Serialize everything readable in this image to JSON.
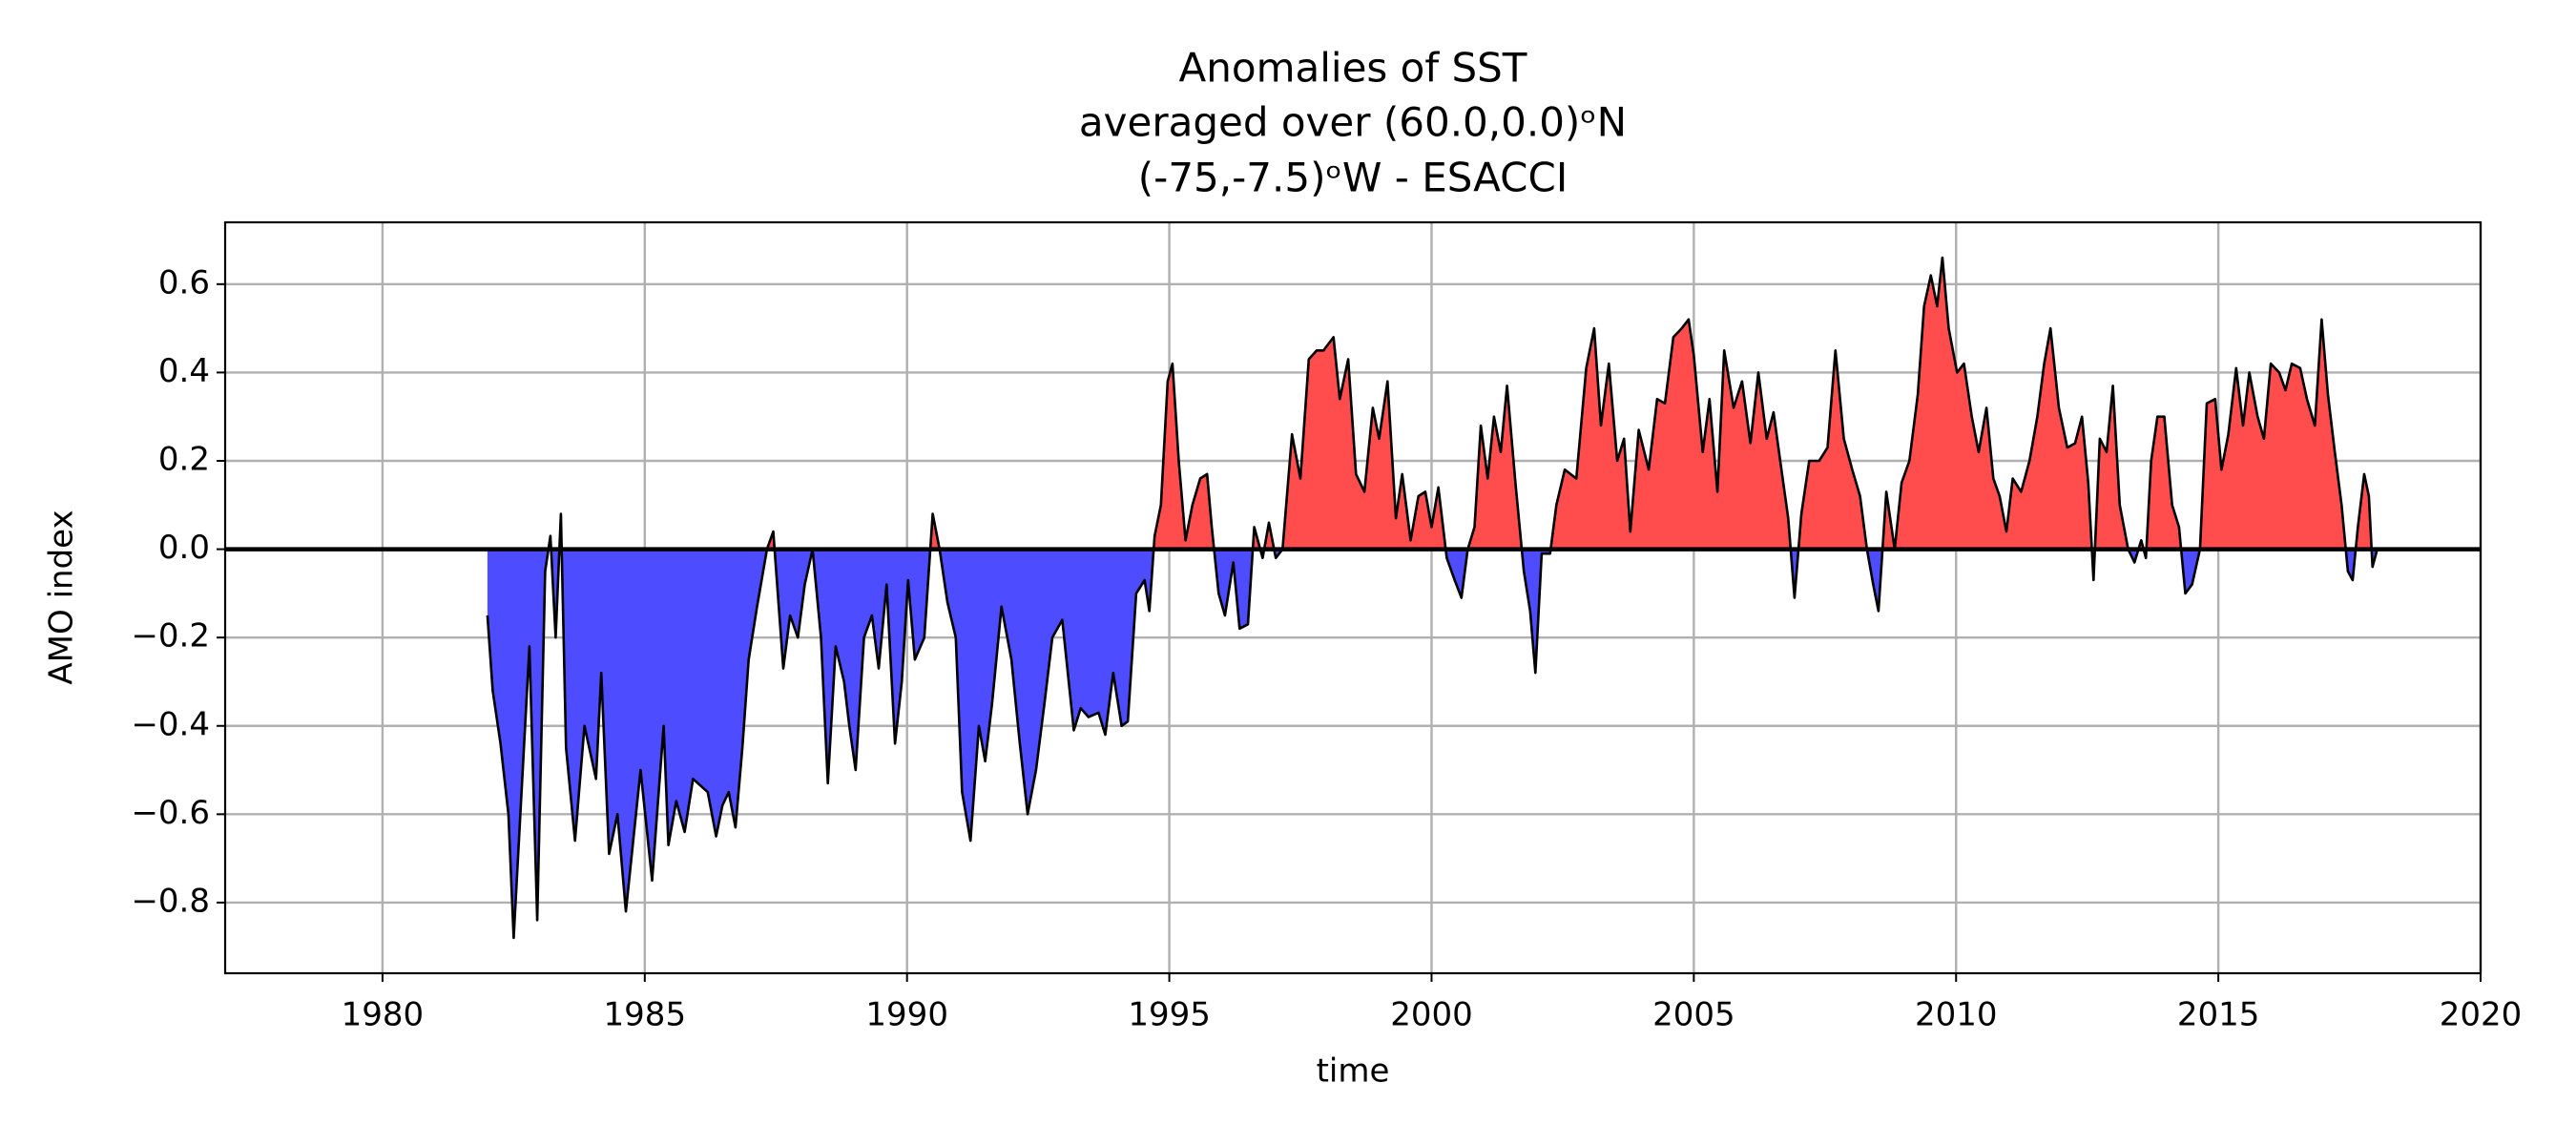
{
  "chart_data": {
    "type": "area",
    "title": [
      "Anomalies of SST",
      "averaged over (60.0,0.0)ᵒN",
      "(-75,-7.5)ᵒW - ESACCI"
    ],
    "xlabel": "time",
    "ylabel": "AMO index",
    "x": [
      1982.0,
      1982.1,
      1982.25,
      1982.4,
      1982.5,
      1982.8,
      1982.95,
      1983.1,
      1983.2,
      1983.3,
      1983.4,
      1983.5,
      1983.67,
      1983.85,
      1984.07,
      1984.17,
      1984.32,
      1984.48,
      1984.64,
      1984.92,
      1985.14,
      1985.36,
      1985.45,
      1985.6,
      1985.76,
      1985.92,
      1986.2,
      1986.36,
      1986.48,
      1986.6,
      1986.73,
      1986.86,
      1986.98,
      1987.14,
      1987.33,
      1987.45,
      1987.64,
      1987.77,
      1987.92,
      1988.05,
      1988.2,
      1988.36,
      1988.49,
      1988.64,
      1988.8,
      1988.9,
      1989.02,
      1989.18,
      1989.33,
      1989.46,
      1989.61,
      1989.77,
      1989.9,
      1990.02,
      1990.15,
      1990.33,
      1990.49,
      1990.62,
      1990.77,
      1990.93,
      1991.05,
      1991.21,
      1991.37,
      1991.49,
      1991.62,
      1991.8,
      1991.99,
      1992.15,
      1992.3,
      1992.46,
      1992.62,
      1992.77,
      1992.96,
      1993.18,
      1993.31,
      1993.46,
      1993.65,
      1993.78,
      1993.93,
      1994.09,
      1994.21,
      1994.37,
      1994.53,
      1994.62,
      1994.72,
      1994.84,
      1994.97,
      1995.06,
      1995.18,
      1995.31,
      1995.44,
      1995.59,
      1995.72,
      1995.81,
      1995.94,
      1996.06,
      1996.22,
      1996.34,
      1996.5,
      1996.62,
      1996.78,
      1996.9,
      1997.03,
      1997.16,
      1997.34,
      1997.5,
      1997.66,
      1997.81,
      1997.94,
      1998.13,
      1998.25,
      1998.41,
      1998.56,
      1998.72,
      1998.88,
      1999.0,
      1999.16,
      1999.32,
      1999.44,
      1999.6,
      1999.75,
      1999.88,
      2000.0,
      2000.13,
      2000.29,
      2000.44,
      2000.57,
      2000.69,
      2000.82,
      2000.94,
      2001.07,
      2001.19,
      2001.32,
      2001.44,
      2001.6,
      2001.76,
      2001.88,
      2001.98,
      2002.1,
      2002.26,
      2002.38,
      2002.54,
      2002.76,
      2002.95,
      2003.1,
      2003.23,
      2003.38,
      2003.54,
      2003.67,
      2003.79,
      2003.95,
      2004.14,
      2004.3,
      2004.45,
      2004.61,
      2004.77,
      2004.9,
      2005.0,
      2005.17,
      2005.3,
      2005.45,
      2005.58,
      2005.76,
      2005.92,
      2006.08,
      2006.23,
      2006.39,
      2006.52,
      2006.67,
      2006.8,
      2006.92,
      2007.05,
      2007.2,
      2007.39,
      2007.55,
      2007.7,
      2007.86,
      2008.02,
      2008.17,
      2008.3,
      2008.42,
      2008.52,
      2008.67,
      2008.83,
      2008.96,
      2009.11,
      2009.27,
      2009.39,
      2009.52,
      2009.64,
      2009.74,
      2009.86,
      2010.02,
      2010.15,
      2010.3,
      2010.43,
      2010.58,
      2010.71,
      2010.83,
      2010.96,
      2011.08,
      2011.24,
      2011.4,
      2011.55,
      2011.68,
      2011.8,
      2011.96,
      2012.12,
      2012.27,
      2012.4,
      2012.52,
      2012.62,
      2012.74,
      2012.87,
      2012.99,
      2013.12,
      2013.28,
      2013.4,
      2013.53,
      2013.62,
      2013.72,
      2013.84,
      2013.97,
      2014.12,
      2014.25,
      2014.37,
      2014.5,
      2014.65,
      2014.78,
      2014.94,
      2015.06,
      2015.19,
      2015.34,
      2015.47,
      2015.59,
      2015.75,
      2015.87,
      2016.0,
      2016.16,
      2016.28,
      2016.4,
      2016.56,
      2016.69,
      2016.84,
      2016.97,
      2017.09,
      2017.22,
      2017.35,
      2017.47,
      2017.56,
      2017.66,
      2017.78,
      2017.87,
      2017.94,
      2018.03
    ],
    "values": [
      -0.15,
      -0.32,
      -0.44,
      -0.6,
      -0.88,
      -0.22,
      -0.84,
      -0.05,
      0.03,
      -0.2,
      0.08,
      -0.45,
      -0.66,
      -0.4,
      -0.52,
      -0.28,
      -0.69,
      -0.6,
      -0.82,
      -0.5,
      -0.75,
      -0.4,
      -0.67,
      -0.57,
      -0.64,
      -0.52,
      -0.55,
      -0.65,
      -0.58,
      -0.55,
      -0.63,
      -0.45,
      -0.25,
      -0.13,
      0.0,
      0.04,
      -0.27,
      -0.15,
      -0.2,
      -0.08,
      0.0,
      -0.2,
      -0.53,
      -0.22,
      -0.3,
      -0.4,
      -0.5,
      -0.2,
      -0.15,
      -0.27,
      -0.08,
      -0.44,
      -0.3,
      -0.07,
      -0.25,
      -0.2,
      0.08,
      0.0,
      -0.12,
      -0.2,
      -0.55,
      -0.66,
      -0.4,
      -0.48,
      -0.35,
      -0.13,
      -0.25,
      -0.44,
      -0.6,
      -0.5,
      -0.35,
      -0.2,
      -0.16,
      -0.41,
      -0.36,
      -0.38,
      -0.37,
      -0.42,
      -0.28,
      -0.4,
      -0.39,
      -0.1,
      -0.07,
      -0.14,
      0.03,
      0.1,
      0.38,
      0.42,
      0.2,
      0.02,
      0.1,
      0.16,
      0.17,
      0.05,
      -0.1,
      -0.15,
      -0.03,
      -0.18,
      -0.17,
      0.05,
      -0.02,
      0.06,
      -0.02,
      0.0,
      0.26,
      0.16,
      0.43,
      0.45,
      0.45,
      0.48,
      0.34,
      0.43,
      0.17,
      0.13,
      0.32,
      0.25,
      0.38,
      0.07,
      0.17,
      0.02,
      0.12,
      0.13,
      0.05,
      0.14,
      -0.02,
      -0.07,
      -0.11,
      0.0,
      0.05,
      0.28,
      0.16,
      0.3,
      0.22,
      0.37,
      0.15,
      -0.05,
      -0.14,
      -0.28,
      -0.01,
      -0.01,
      0.1,
      0.18,
      0.16,
      0.41,
      0.5,
      0.28,
      0.42,
      0.2,
      0.25,
      0.04,
      0.27,
      0.18,
      0.34,
      0.33,
      0.48,
      0.5,
      0.52,
      0.44,
      0.22,
      0.34,
      0.13,
      0.45,
      0.32,
      0.38,
      0.24,
      0.4,
      0.25,
      0.31,
      0.18,
      0.07,
      -0.11,
      0.08,
      0.2,
      0.2,
      0.23,
      0.45,
      0.25,
      0.18,
      0.12,
      0.0,
      -0.08,
      -0.14,
      0.13,
      0.0,
      0.15,
      0.2,
      0.35,
      0.55,
      0.62,
      0.55,
      0.66,
      0.5,
      0.4,
      0.42,
      0.3,
      0.22,
      0.32,
      0.16,
      0.12,
      0.04,
      0.16,
      0.13,
      0.2,
      0.3,
      0.42,
      0.5,
      0.32,
      0.23,
      0.24,
      0.3,
      0.15,
      -0.07,
      0.25,
      0.22,
      0.37,
      0.1,
      0.0,
      -0.03,
      0.02,
      -0.02,
      0.2,
      0.3,
      0.3,
      0.1,
      0.05,
      -0.1,
      -0.08,
      0.0,
      0.33,
      0.34,
      0.18,
      0.26,
      0.41,
      0.28,
      0.4,
      0.3,
      0.25,
      0.42,
      0.4,
      0.36,
      0.42,
      0.41,
      0.34,
      0.28,
      0.52,
      0.35,
      0.22,
      0.1,
      -0.05,
      -0.07,
      0.05,
      0.17,
      0.12,
      -0.04,
      0.0
    ],
    "line_color": "#000000",
    "positive_color": "#ff4d4d",
    "negative_color": "#4d4dff",
    "reference_line": 0,
    "xlim": [
      1977,
      2020
    ],
    "xticks": [
      1980,
      1985,
      1990,
      1995,
      2000,
      2005,
      2010,
      2015,
      2020
    ],
    "ylim": [
      -0.96,
      0.74
    ],
    "yticks": [
      {
        "value": -0.8,
        "label": "−0.8"
      },
      {
        "value": -0.6,
        "label": "−0.6"
      },
      {
        "value": -0.4,
        "label": "−0.4"
      },
      {
        "value": -0.2,
        "label": "−0.2"
      },
      {
        "value": 0,
        "label": "0.0"
      },
      0.2,
      0.4,
      0.6
    ],
    "grid": true
  }
}
